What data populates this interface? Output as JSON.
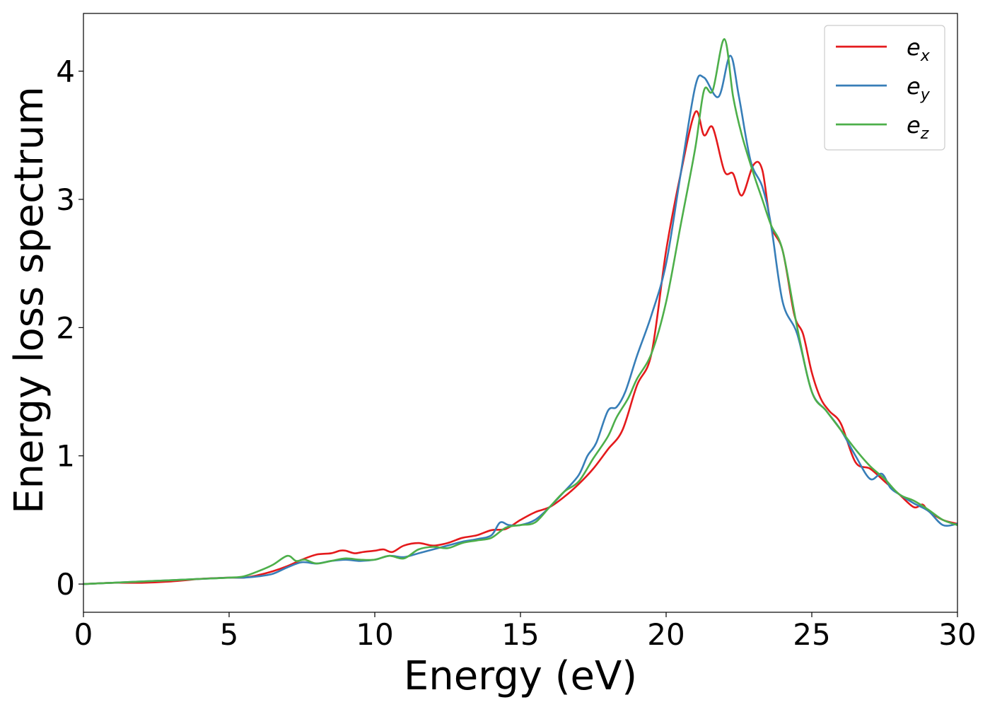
{
  "chart_data": {
    "type": "line",
    "title": "",
    "xlabel": "Energy (eV)",
    "ylabel": "Energy loss spectrum",
    "xlim": [
      0,
      30
    ],
    "ylim": [
      -0.22,
      4.45
    ],
    "xticks": [
      0,
      5,
      10,
      15,
      20,
      25,
      30
    ],
    "xtick_labels": [
      "0",
      "5",
      "10",
      "15",
      "20",
      "25",
      "30"
    ],
    "yticks": [
      0,
      1,
      2,
      3,
      4
    ],
    "ytick_labels": [
      "0",
      "1",
      "2",
      "3",
      "4"
    ],
    "grid": false,
    "legend_position": "top-right",
    "series": [
      {
        "name": "e_x",
        "legend_base": "e",
        "legend_sub": "x",
        "color": "#e41a1c",
        "x": [
          0,
          1,
          2,
          3,
          4,
          5,
          5.5,
          6,
          6.5,
          7,
          7.5,
          8,
          8.5,
          8.8,
          9,
          9.3,
          9.6,
          10,
          10.3,
          10.6,
          11,
          11.5,
          12,
          12.5,
          13,
          13.5,
          14,
          14.5,
          15,
          15.5,
          16,
          16.5,
          17,
          17.5,
          18,
          18.5,
          19,
          19.5,
          20,
          20.5,
          21,
          21.3,
          21.6,
          22,
          22.3,
          22.6,
          23,
          23.3,
          23.6,
          24,
          24.4,
          24.7,
          25,
          25.3,
          25.6,
          26,
          26.5,
          27,
          27.5,
          28,
          28.5,
          28.8,
          29,
          29.5,
          30
        ],
        "y": [
          0.0,
          0.01,
          0.01,
          0.02,
          0.04,
          0.05,
          0.05,
          0.07,
          0.1,
          0.14,
          0.19,
          0.23,
          0.24,
          0.26,
          0.26,
          0.24,
          0.25,
          0.26,
          0.27,
          0.25,
          0.3,
          0.32,
          0.3,
          0.32,
          0.36,
          0.38,
          0.42,
          0.43,
          0.5,
          0.56,
          0.6,
          0.68,
          0.78,
          0.9,
          1.05,
          1.2,
          1.55,
          1.8,
          2.6,
          3.2,
          3.68,
          3.5,
          3.56,
          3.22,
          3.2,
          3.03,
          3.27,
          3.23,
          2.8,
          2.6,
          2.1,
          1.95,
          1.65,
          1.45,
          1.35,
          1.25,
          0.95,
          0.9,
          0.8,
          0.7,
          0.6,
          0.62,
          0.57,
          0.5,
          0.47
        ]
      },
      {
        "name": "e_y",
        "legend_base": "e",
        "legend_sub": "y",
        "color": "#377eb8",
        "x": [
          0,
          1,
          2,
          3,
          4,
          5,
          5.5,
          6,
          6.5,
          7,
          7.5,
          8,
          8.5,
          9,
          9.5,
          10,
          10.5,
          11,
          11.5,
          12,
          12.5,
          13,
          13.5,
          14,
          14.3,
          14.6,
          15,
          15.5,
          16,
          16.5,
          17,
          17.3,
          17.6,
          18,
          18.3,
          18.6,
          19,
          19.5,
          20,
          20.5,
          21,
          21.3,
          21.8,
          22.2,
          22.5,
          22.9,
          23.3,
          23.6,
          24,
          24.5,
          25,
          25.5,
          26,
          26.5,
          27,
          27.4,
          27.7,
          28,
          28.5,
          29,
          29.5,
          30
        ],
        "y": [
          0.0,
          0.01,
          0.02,
          0.03,
          0.04,
          0.05,
          0.05,
          0.06,
          0.08,
          0.13,
          0.17,
          0.16,
          0.18,
          0.19,
          0.18,
          0.19,
          0.22,
          0.21,
          0.24,
          0.27,
          0.3,
          0.33,
          0.35,
          0.38,
          0.48,
          0.46,
          0.46,
          0.5,
          0.6,
          0.72,
          0.85,
          1.0,
          1.1,
          1.35,
          1.38,
          1.5,
          1.78,
          2.1,
          2.5,
          3.2,
          3.88,
          3.95,
          3.8,
          4.12,
          3.8,
          3.3,
          3.1,
          2.8,
          2.2,
          1.95,
          1.5,
          1.35,
          1.2,
          1.0,
          0.82,
          0.86,
          0.75,
          0.7,
          0.63,
          0.57,
          0.46,
          0.47
        ]
      },
      {
        "name": "e_z",
        "legend_base": "e",
        "legend_sub": "z",
        "color": "#4daf4a",
        "x": [
          0,
          1,
          2,
          3,
          4,
          5,
          5.5,
          6,
          6.5,
          7,
          7.3,
          7.6,
          8,
          8.5,
          9,
          9.5,
          10,
          10.5,
          11,
          11.5,
          12,
          12.5,
          13,
          13.5,
          14,
          14.5,
          15,
          15.5,
          16,
          16.5,
          17,
          17.5,
          18,
          18.3,
          18.7,
          19,
          19.5,
          20,
          20.5,
          21,
          21.3,
          21.6,
          22,
          22.3,
          22.6,
          23,
          23.3,
          23.6,
          24,
          24.5,
          25,
          25.5,
          26,
          26.5,
          27,
          27.5,
          28,
          28.5,
          29,
          29.5,
          30
        ],
        "y": [
          0.0,
          0.01,
          0.02,
          0.03,
          0.04,
          0.05,
          0.06,
          0.1,
          0.15,
          0.22,
          0.18,
          0.19,
          0.16,
          0.18,
          0.2,
          0.19,
          0.19,
          0.22,
          0.2,
          0.27,
          0.29,
          0.28,
          0.32,
          0.34,
          0.36,
          0.44,
          0.46,
          0.48,
          0.6,
          0.72,
          0.8,
          0.98,
          1.15,
          1.3,
          1.45,
          1.6,
          1.8,
          2.2,
          2.8,
          3.4,
          3.85,
          3.85,
          4.25,
          3.8,
          3.5,
          3.2,
          3.0,
          2.8,
          2.6,
          2.0,
          1.5,
          1.35,
          1.2,
          1.05,
          0.92,
          0.82,
          0.7,
          0.65,
          0.58,
          0.5,
          0.46
        ]
      }
    ]
  }
}
